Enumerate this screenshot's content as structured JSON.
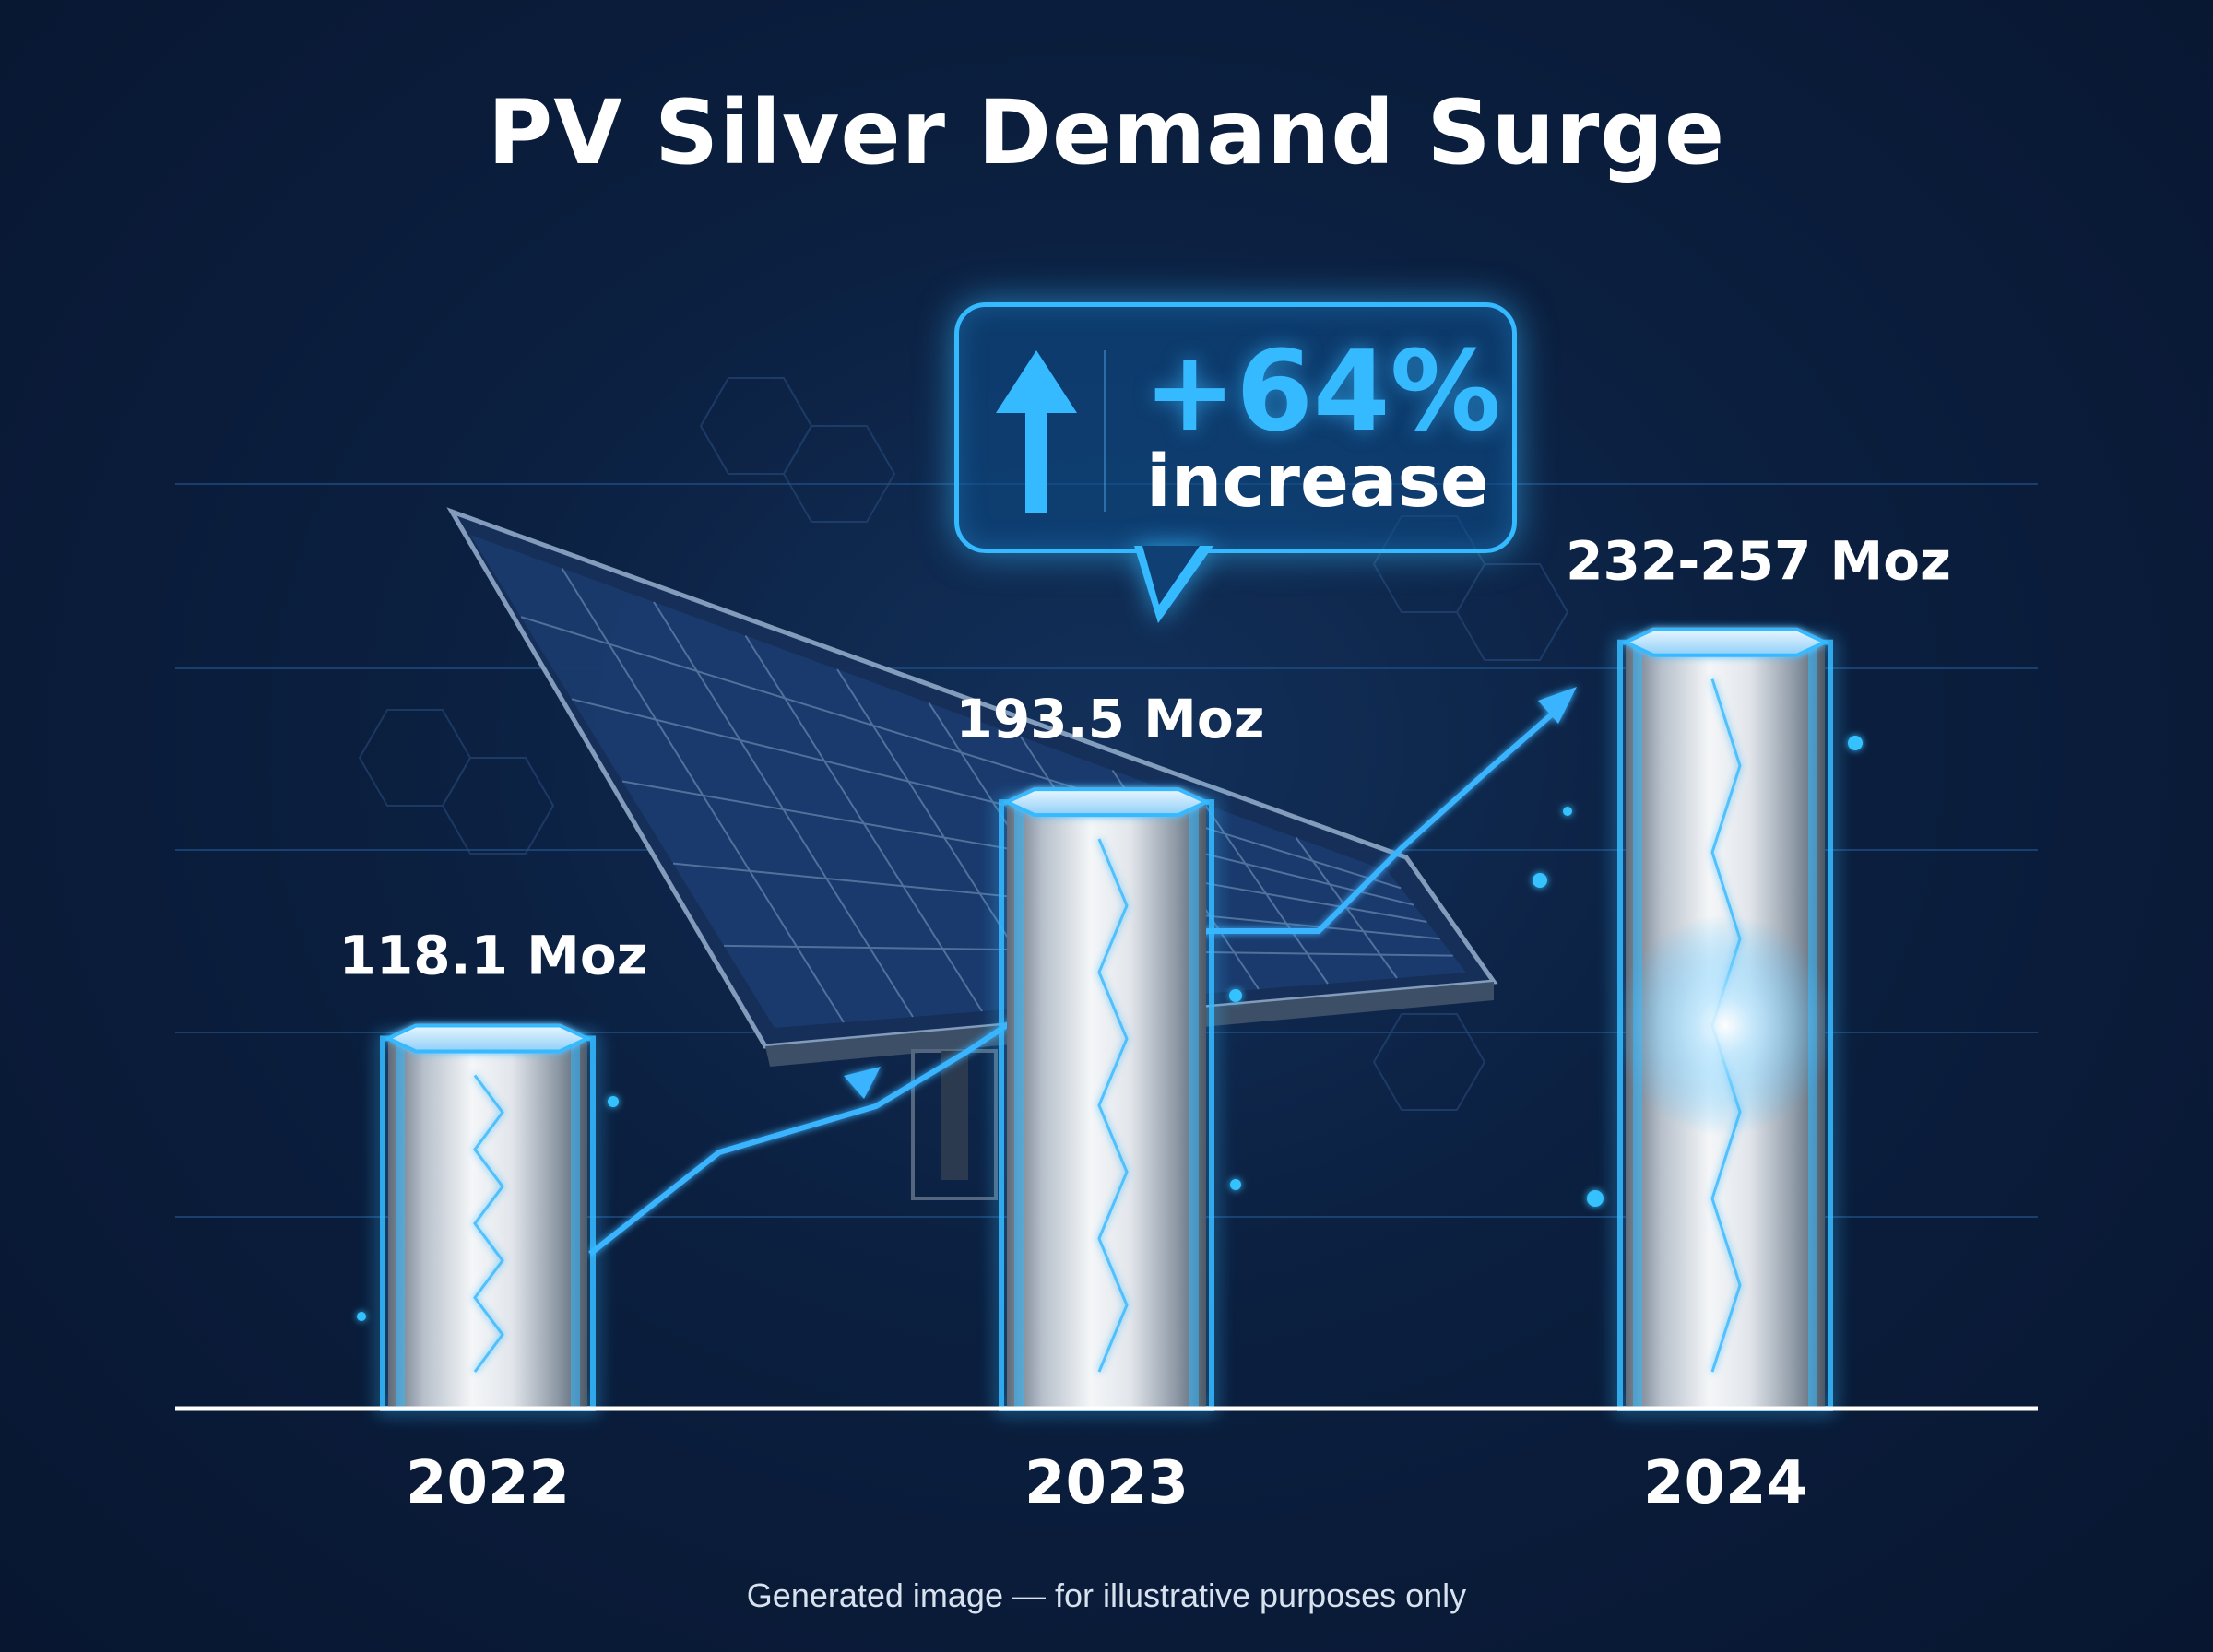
{
  "chart_data": {
    "type": "bar",
    "title": "PV Silver Demand Surge",
    "categories": [
      "2022",
      "2023",
      "2024"
    ],
    "values": [
      118.1,
      193.5,
      244.5
    ],
    "value_ranges": [
      null,
      null,
      [
        232,
        257
      ]
    ],
    "data_labels": [
      "118.1 Moz",
      "193.5 Moz",
      "232-257 Moz"
    ],
    "unit": "Moz",
    "xlabel": "",
    "ylabel": "",
    "ylim": [
      0,
      350
    ],
    "grid": true,
    "annotation": {
      "value": "+64%",
      "text": "increase"
    }
  },
  "colors": {
    "accent": "#35b9ff",
    "background": "#0b1f3f",
    "bar": "#d9dde3",
    "text": "#ffffff"
  },
  "icons": {
    "callout_icon": "up-arrow-icon"
  },
  "footer": "Generated image — for illustrative purposes only"
}
